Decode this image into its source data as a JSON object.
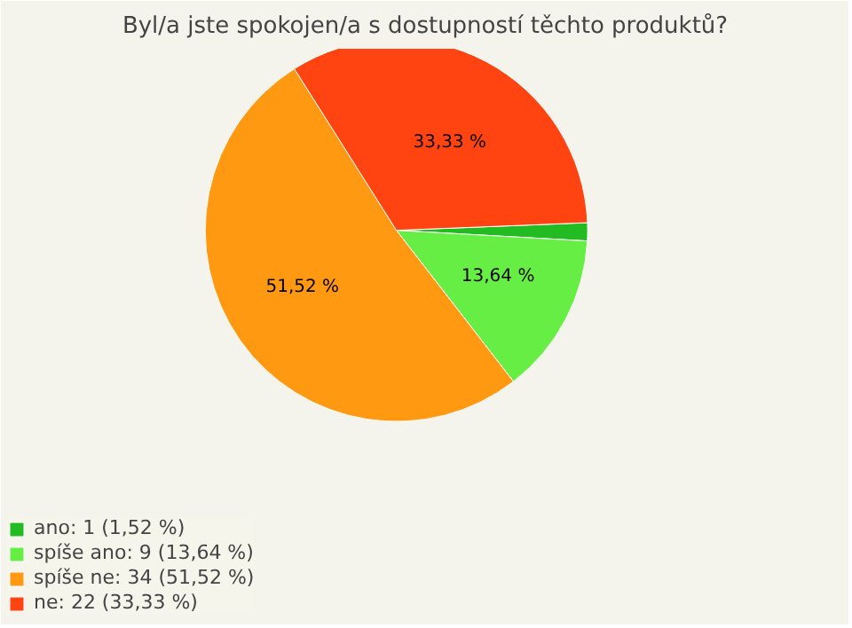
{
  "chart_data": {
    "type": "pie",
    "title": "Byl/a jste spokojen/a s dostupností těchto produktů?",
    "categories": [
      "ano: 1 (1,52 %)",
      "spíše ano: 9 (13,64 %)",
      "spíše ne: 34 (51,52 %)",
      "ne: 22 (33,33 %)"
    ],
    "values": [
      1.52,
      13.64,
      51.52,
      33.33
    ],
    "value_labels": [
      null,
      "13,64 %",
      "51,52 %",
      "33,33 %"
    ],
    "colors": [
      "#22bb22",
      "#66ee44",
      "#ff9911",
      "#ff4411"
    ],
    "legend": "bottom left"
  }
}
